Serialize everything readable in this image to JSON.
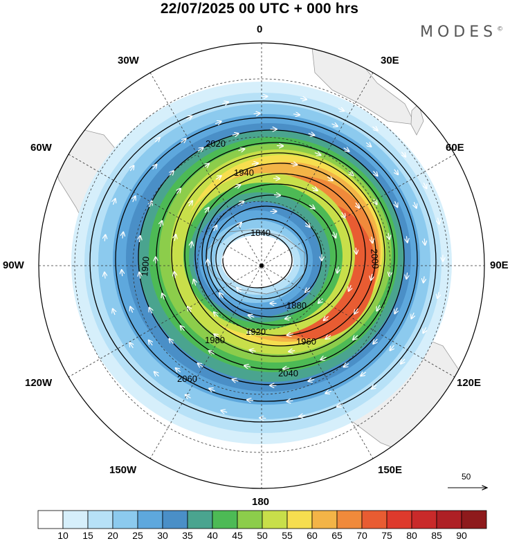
{
  "title": "22/07/2025  00 UTC  + 000 hrs",
  "brand": "MODES",
  "brand_mark": "©",
  "longitude_labels": {
    "n0": "0",
    "e30": "30E",
    "e60": "60E",
    "e90": "90E",
    "e120": "120E",
    "e150": "150E",
    "s180": "180",
    "w150": "150W",
    "w120": "120W",
    "w90": "90W",
    "w60": "60W",
    "w30": "30W"
  },
  "contour_labels": [
    "1840",
    "1880",
    "1900",
    "1920",
    "1940",
    "1960",
    "1980",
    "2000",
    "2020",
    "2040",
    "2060"
  ],
  "reference_vector": "50",
  "colorbar": {
    "ticks": [
      "10",
      "15",
      "20",
      "25",
      "30",
      "35",
      "40",
      "45",
      "50",
      "55",
      "60",
      "65",
      "70",
      "75",
      "80",
      "85",
      "90"
    ],
    "colors": [
      "#ffffff",
      "#d6effb",
      "#b7e1f7",
      "#8ccaee",
      "#5ea8dd",
      "#4a8fc7",
      "#4aa48f",
      "#4dba55",
      "#8ccd4b",
      "#c8df4a",
      "#f6de4f",
      "#f3b447",
      "#f08a3b",
      "#e85c32",
      "#de3a2c",
      "#c92a2a",
      "#ae2025",
      "#8e1a1c"
    ]
  }
}
